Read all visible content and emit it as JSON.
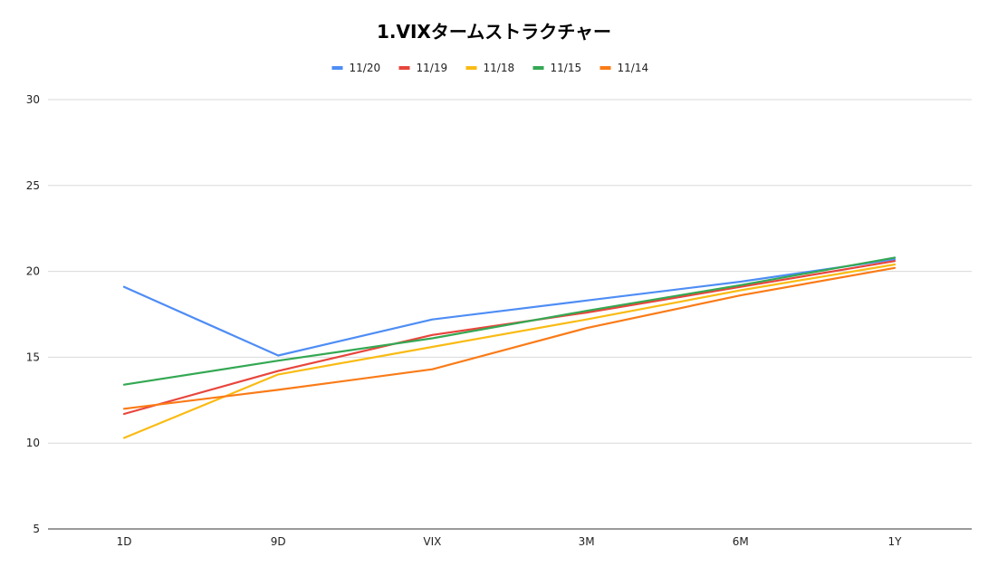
{
  "chart_data": {
    "type": "line",
    "title": "1.VIXタームストラクチャー",
    "categories": [
      "1D",
      "9D",
      "VIX",
      "3M",
      "6M",
      "1Y"
    ],
    "ylim": [
      5,
      30
    ],
    "yticks": [
      5,
      10,
      15,
      20,
      25,
      30
    ],
    "grid": true,
    "legend_position": "top-center",
    "series": [
      {
        "name": "11/20",
        "color": "#4e8df5",
        "values": [
          19.1,
          15.1,
          17.2,
          18.3,
          19.4,
          20.7
        ]
      },
      {
        "name": "11/19",
        "color": "#e8453c",
        "values": [
          11.7,
          14.2,
          16.3,
          17.6,
          19.1,
          20.6
        ]
      },
      {
        "name": "11/18",
        "color": "#f9bb14",
        "values": [
          10.3,
          14.0,
          15.6,
          17.2,
          18.9,
          20.4
        ]
      },
      {
        "name": "11/15",
        "color": "#34a853",
        "values": [
          13.4,
          14.8,
          16.1,
          17.7,
          19.2,
          20.8
        ]
      },
      {
        "name": "11/14",
        "color": "#fa7b17",
        "values": [
          12.0,
          13.1,
          14.3,
          16.7,
          18.6,
          20.2
        ]
      }
    ]
  }
}
